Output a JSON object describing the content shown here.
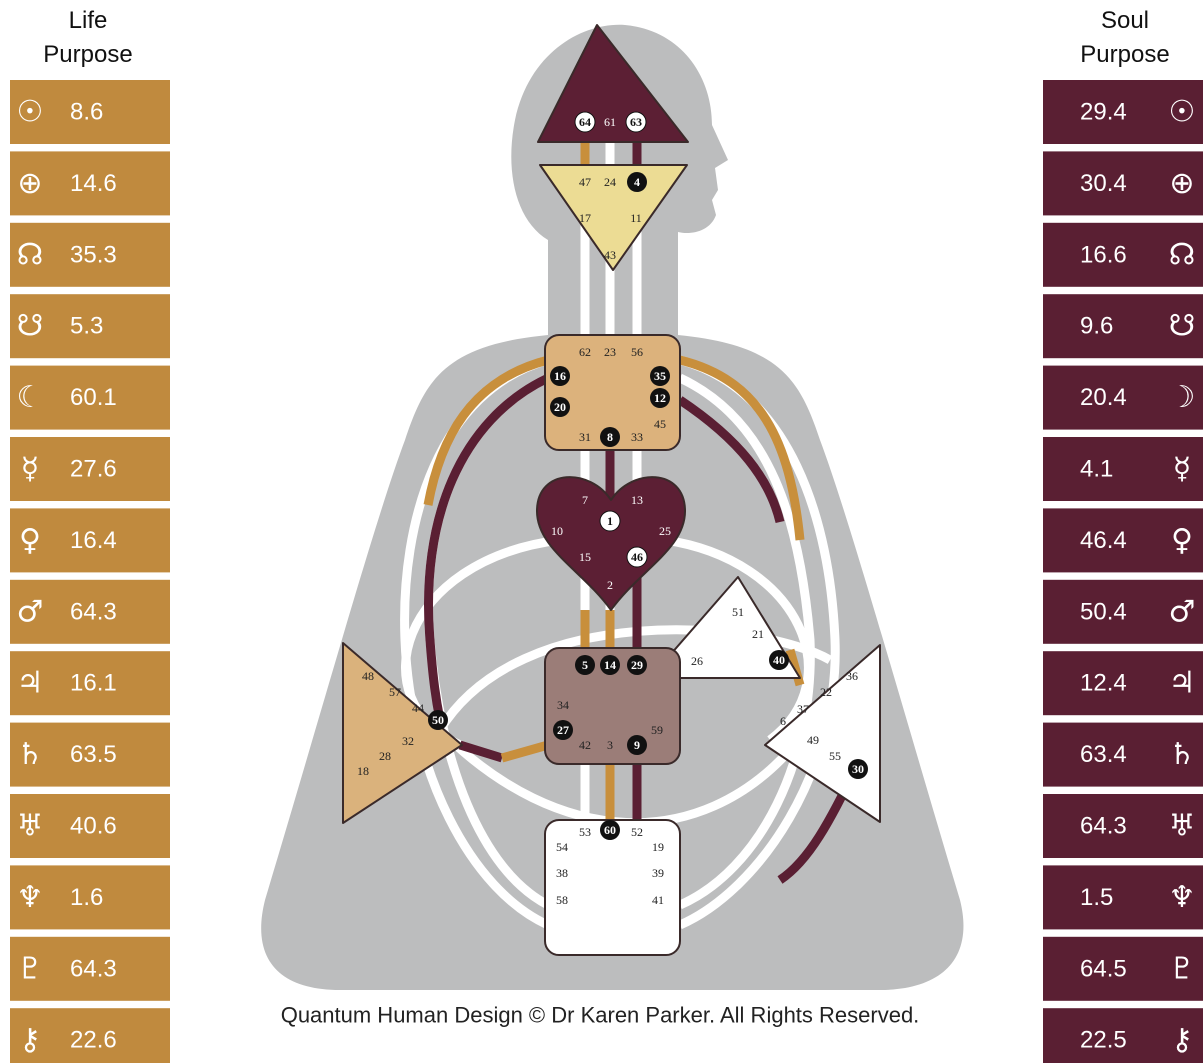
{
  "life_purpose": {
    "title": "Life Purpose",
    "color": "#c08a3e",
    "rows": [
      {
        "symbol": "☉",
        "value": 8.6
      },
      {
        "symbol": "⊕",
        "value": 14.6
      },
      {
        "symbol": "☊",
        "value": 35.3
      },
      {
        "symbol": "☋",
        "value": 5.3
      },
      {
        "symbol": "☾",
        "value": 60.1
      },
      {
        "symbol": "☿",
        "value": 27.6
      },
      {
        "symbol": "♀",
        "value": 16.4
      },
      {
        "symbol": "♂",
        "value": 64.3
      },
      {
        "symbol": "♃",
        "value": 16.1
      },
      {
        "symbol": "♄",
        "value": 63.5
      },
      {
        "symbol": "♅",
        "value": 40.6
      },
      {
        "symbol": "♆",
        "value": 1.6
      },
      {
        "symbol": "♇",
        "value": 64.3
      },
      {
        "symbol": "⚷",
        "value": 22.6
      }
    ]
  },
  "soul_purpose": {
    "title": "Soul Purpose",
    "color": "#5a1f33",
    "rows": [
      {
        "symbol": "☉",
        "value": 29.4
      },
      {
        "symbol": "⊕",
        "value": 30.4
      },
      {
        "symbol": "☊",
        "value": 16.6
      },
      {
        "symbol": "☋",
        "value": 9.6
      },
      {
        "symbol": "☽",
        "value": 20.4
      },
      {
        "symbol": "☿",
        "value": 4.1
      },
      {
        "symbol": "♀",
        "value": 46.4
      },
      {
        "symbol": "♂",
        "value": 50.4
      },
      {
        "symbol": "♃",
        "value": 12.4
      },
      {
        "symbol": "♄",
        "value": 63.4
      },
      {
        "symbol": "♅",
        "value": 64.3
      },
      {
        "symbol": "♆",
        "value": 1.5
      },
      {
        "symbol": "♇",
        "value": 64.5
      },
      {
        "symbol": "⚷",
        "value": 22.5
      }
    ]
  },
  "centers": {
    "head": {
      "color": "#5c1f34",
      "text_color": "#ffffff",
      "gates": [
        {
          "n": 64,
          "style": "white"
        },
        {
          "n": 61,
          "style": "plain"
        },
        {
          "n": 63,
          "style": "white"
        }
      ]
    },
    "ajna": {
      "color": "#ecdc94",
      "text_color": "#222222",
      "gates": [
        {
          "n": 47,
          "style": "plain"
        },
        {
          "n": 24,
          "style": "plain"
        },
        {
          "n": 4,
          "style": "black"
        },
        {
          "n": 17,
          "style": "plain"
        },
        {
          "n": 11,
          "style": "plain"
        },
        {
          "n": 43,
          "style": "plain"
        }
      ]
    },
    "throat": {
      "color": "#dcb27c",
      "text_color": "#222222",
      "gates": [
        {
          "n": 62,
          "style": "plain"
        },
        {
          "n": 23,
          "style": "plain"
        },
        {
          "n": 56,
          "style": "plain"
        },
        {
          "n": 16,
          "style": "black"
        },
        {
          "n": 35,
          "style": "black"
        },
        {
          "n": 20,
          "style": "black"
        },
        {
          "n": 12,
          "style": "black"
        },
        {
          "n": 45,
          "style": "plain"
        },
        {
          "n": 31,
          "style": "plain"
        },
        {
          "n": 8,
          "style": "black"
        },
        {
          "n": 33,
          "style": "plain"
        }
      ]
    },
    "g": {
      "color": "#5c1f34",
      "text_color": "#ffffff",
      "gates": [
        {
          "n": 7,
          "style": "plain"
        },
        {
          "n": 13,
          "style": "plain"
        },
        {
          "n": 10,
          "style": "plain"
        },
        {
          "n": 1,
          "style": "white"
        },
        {
          "n": 25,
          "style": "plain"
        },
        {
          "n": 15,
          "style": "plain"
        },
        {
          "n": 46,
          "style": "white"
        },
        {
          "n": 2,
          "style": "plain"
        }
      ]
    },
    "heart": {
      "color": "#ffffff",
      "text_color": "#222222",
      "gates": [
        {
          "n": 51,
          "style": "plain"
        },
        {
          "n": 21,
          "style": "plain"
        },
        {
          "n": 40,
          "style": "black"
        },
        {
          "n": 26,
          "style": "plain"
        }
      ]
    },
    "sacral": {
      "color": "#9b7d78",
      "text_color": "#222222",
      "gates": [
        {
          "n": 5,
          "style": "black"
        },
        {
          "n": 14,
          "style": "black"
        },
        {
          "n": 29,
          "style": "black"
        },
        {
          "n": 34,
          "style": "plain"
        },
        {
          "n": 27,
          "style": "black"
        },
        {
          "n": 42,
          "style": "plain"
        },
        {
          "n": 3,
          "style": "plain"
        },
        {
          "n": 9,
          "style": "black"
        },
        {
          "n": 59,
          "style": "plain"
        }
      ]
    },
    "spleen": {
      "color": "#dab27c",
      "text_color": "#222222",
      "gates": [
        {
          "n": 48,
          "style": "plain"
        },
        {
          "n": 57,
          "style": "plain"
        },
        {
          "n": 44,
          "style": "plain"
        },
        {
          "n": 50,
          "style": "black"
        },
        {
          "n": 32,
          "style": "plain"
        },
        {
          "n": 28,
          "style": "plain"
        },
        {
          "n": 18,
          "style": "plain"
        }
      ]
    },
    "solar_plexus": {
      "color": "#ffffff",
      "text_color": "#222222",
      "gates": [
        {
          "n": 36,
          "style": "plain"
        },
        {
          "n": 22,
          "style": "plain"
        },
        {
          "n": 37,
          "style": "plain"
        },
        {
          "n": 6,
          "style": "plain"
        },
        {
          "n": 49,
          "style": "plain"
        },
        {
          "n": 55,
          "style": "plain"
        },
        {
          "n": 30,
          "style": "black"
        }
      ]
    },
    "root": {
      "color": "#ffffff",
      "text_color": "#222222",
      "gates": [
        {
          "n": 53,
          "style": "plain"
        },
        {
          "n": 60,
          "style": "black"
        },
        {
          "n": 52,
          "style": "plain"
        },
        {
          "n": 54,
          "style": "plain"
        },
        {
          "n": 19,
          "style": "plain"
        },
        {
          "n": 38,
          "style": "plain"
        },
        {
          "n": 39,
          "style": "plain"
        },
        {
          "n": 58,
          "style": "plain"
        },
        {
          "n": 41,
          "style": "plain"
        }
      ]
    }
  },
  "footer": "Quantum Human Design © Dr Karen Parker. All Rights Reserved."
}
